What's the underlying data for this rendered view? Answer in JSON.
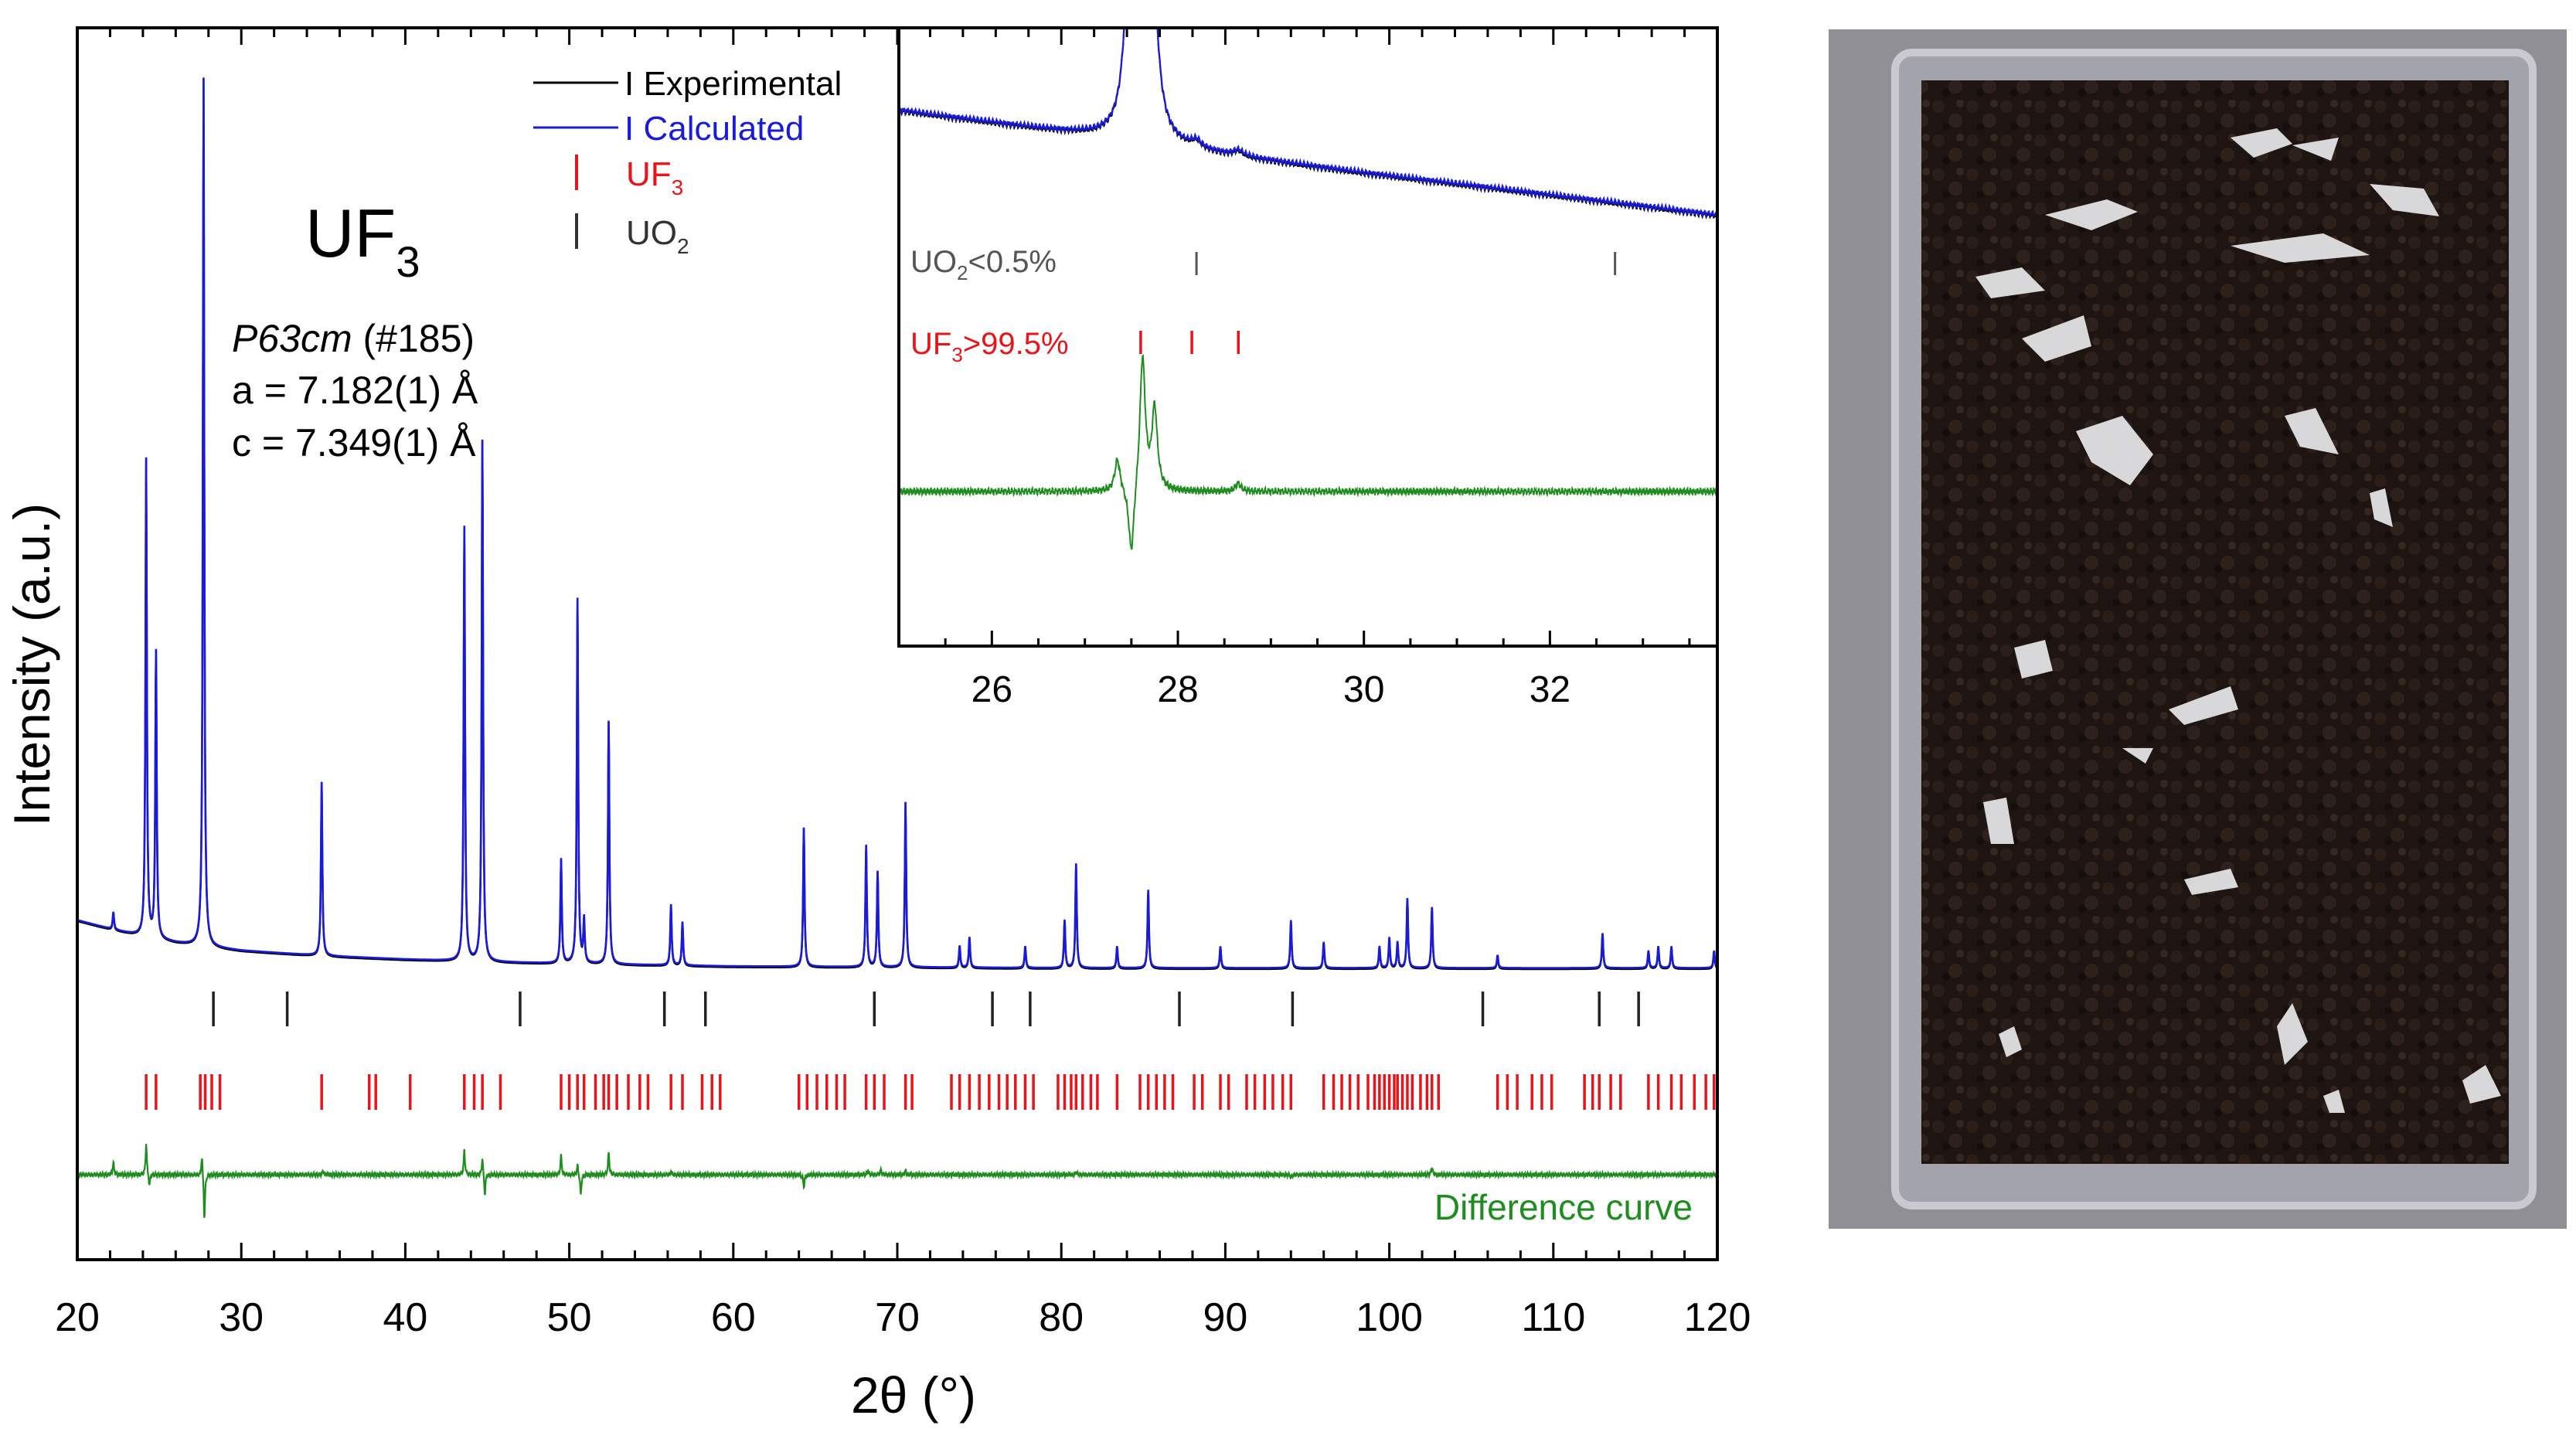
{
  "chart_data": {
    "type": "line",
    "title": "",
    "xlabel": "2θ (°)",
    "ylabel": "Intensity (a.u.)",
    "xlim": [
      20,
      120
    ],
    "xticks": [
      20,
      30,
      40,
      50,
      60,
      70,
      80,
      90,
      100,
      110,
      120
    ],
    "grid": false,
    "legend_placement": "top-center",
    "annotations": {
      "compound": "UF",
      "compound_sub": "3",
      "space_group_symbol": "P63cm",
      "space_group_number": "(#185)",
      "lattice_a": "a = 7.182(1) Å",
      "lattice_c": "c = 7.349(1) Å",
      "difference_label": "Difference curve"
    },
    "legend": [
      {
        "label": "I Experimental",
        "color": "#000000",
        "kind": "line"
      },
      {
        "label": "I Calculated",
        "color": "#1a1adb",
        "kind": "line"
      },
      {
        "label": "UF",
        "sub": "3",
        "color": "#e8141c",
        "kind": "tick"
      },
      {
        "label": "UO",
        "sub": "2",
        "color": "#333333",
        "kind": "tick"
      }
    ],
    "colors": {
      "experimental": "#000000",
      "calculated": "#1a1adb",
      "uf3_ticks": "#e8141c",
      "uo2_ticks": "#222222",
      "difference": "#1e8c1e"
    },
    "baseline": {
      "points": [
        [
          20,
          0.055
        ],
        [
          22,
          0.045
        ],
        [
          24,
          0.036
        ],
        [
          26,
          0.029
        ],
        [
          28,
          0.024
        ],
        [
          30,
          0.02
        ],
        [
          35,
          0.014
        ],
        [
          40,
          0.01
        ],
        [
          45,
          0.007
        ],
        [
          50,
          0.005
        ],
        [
          60,
          0.002
        ],
        [
          70,
          0.001
        ],
        [
          80,
          0.0
        ],
        [
          120,
          0.0
        ]
      ]
    },
    "peaks": [
      {
        "x": 22.2,
        "y": 0.02
      },
      {
        "x": 24.2,
        "y": 0.55
      },
      {
        "x": 24.8,
        "y": 0.33
      },
      {
        "x": 27.7,
        "y": 1.0
      },
      {
        "x": 34.9,
        "y": 0.2
      },
      {
        "x": 43.6,
        "y": 0.5
      },
      {
        "x": 44.7,
        "y": 0.6
      },
      {
        "x": 49.5,
        "y": 0.12
      },
      {
        "x": 50.5,
        "y": 0.42
      },
      {
        "x": 50.9,
        "y": 0.05
      },
      {
        "x": 52.4,
        "y": 0.28
      },
      {
        "x": 56.2,
        "y": 0.07
      },
      {
        "x": 56.9,
        "y": 0.05
      },
      {
        "x": 64.3,
        "y": 0.16
      },
      {
        "x": 68.1,
        "y": 0.14
      },
      {
        "x": 68.8,
        "y": 0.11
      },
      {
        "x": 70.5,
        "y": 0.19
      },
      {
        "x": 73.8,
        "y": 0.025
      },
      {
        "x": 74.4,
        "y": 0.035
      },
      {
        "x": 77.8,
        "y": 0.025
      },
      {
        "x": 80.2,
        "y": 0.055
      },
      {
        "x": 80.9,
        "y": 0.12
      },
      {
        "x": 83.4,
        "y": 0.025
      },
      {
        "x": 85.3,
        "y": 0.09
      },
      {
        "x": 89.7,
        "y": 0.025
      },
      {
        "x": 94.0,
        "y": 0.055
      },
      {
        "x": 96.0,
        "y": 0.03
      },
      {
        "x": 99.4,
        "y": 0.025
      },
      {
        "x": 100.0,
        "y": 0.035
      },
      {
        "x": 100.5,
        "y": 0.03
      },
      {
        "x": 101.1,
        "y": 0.08
      },
      {
        "x": 102.6,
        "y": 0.07
      },
      {
        "x": 106.6,
        "y": 0.015
      },
      {
        "x": 113.0,
        "y": 0.04
      },
      {
        "x": 115.8,
        "y": 0.02
      },
      {
        "x": 116.4,
        "y": 0.025
      },
      {
        "x": 117.2,
        "y": 0.025
      },
      {
        "x": 119.8,
        "y": 0.02
      }
    ],
    "uo2_reflections": [
      28.3,
      32.8,
      47.0,
      55.8,
      58.3,
      68.6,
      75.8,
      78.1,
      87.2,
      94.1,
      105.7,
      112.8,
      115.2
    ],
    "uf3_reflections": [
      24.2,
      24.8,
      27.5,
      27.8,
      28.2,
      28.7,
      34.9,
      37.8,
      38.2,
      40.3,
      43.6,
      44.2,
      44.7,
      45.8,
      49.5,
      50.0,
      50.5,
      50.9,
      51.6,
      52.1,
      52.4,
      52.9,
      53.6,
      54.3,
      54.8,
      56.2,
      56.9,
      58.1,
      58.7,
      59.2,
      64.0,
      64.5,
      65.1,
      65.7,
      66.3,
      66.8,
      68.1,
      68.6,
      69.2,
      70.5,
      70.9,
      73.3,
      73.8,
      74.4,
      75.0,
      75.6,
      76.2,
      76.7,
      77.2,
      77.8,
      78.3,
      79.8,
      80.2,
      80.6,
      80.9,
      81.3,
      81.8,
      82.2,
      83.4,
      84.8,
      85.3,
      85.8,
      86.3,
      86.8,
      88.1,
      88.6,
      89.7,
      90.2,
      91.3,
      91.8,
      92.4,
      92.9,
      93.5,
      94.0,
      96.0,
      96.6,
      97.1,
      97.6,
      98.1,
      98.7,
      99.1,
      99.4,
      99.7,
      100.0,
      100.3,
      100.5,
      100.8,
      101.1,
      101.4,
      101.9,
      102.3,
      102.6,
      103.0,
      106.6,
      107.2,
      107.8,
      108.7,
      109.3,
      109.9,
      111.9,
      112.4,
      112.8,
      113.5,
      114.1,
      115.8,
      116.4,
      117.2,
      117.8,
      118.6,
      119.3,
      119.8
    ],
    "difference_features": [
      {
        "x": 22.2,
        "y": 0.35
      },
      {
        "x": 24.2,
        "y": 0.9
      },
      {
        "x": 24.4,
        "y": -0.35
      },
      {
        "x": 27.6,
        "y": 0.6
      },
      {
        "x": 27.75,
        "y": -1.3
      },
      {
        "x": 35.0,
        "y": 0.12
      },
      {
        "x": 43.6,
        "y": 0.7
      },
      {
        "x": 44.7,
        "y": 0.5
      },
      {
        "x": 44.85,
        "y": -0.6
      },
      {
        "x": 49.5,
        "y": 0.55
      },
      {
        "x": 50.5,
        "y": 0.3
      },
      {
        "x": 50.7,
        "y": -0.6
      },
      {
        "x": 52.4,
        "y": 0.65
      },
      {
        "x": 56.2,
        "y": 0.1
      },
      {
        "x": 64.3,
        "y": -0.35
      },
      {
        "x": 68.2,
        "y": 0.12
      },
      {
        "x": 69.0,
        "y": 0.15
      },
      {
        "x": 70.5,
        "y": 0.12
      },
      {
        "x": 80.9,
        "y": 0.08
      },
      {
        "x": 94.0,
        "y": -0.08
      },
      {
        "x": 102.6,
        "y": 0.22
      }
    ],
    "inset": {
      "type": "line",
      "xlim": [
        25,
        33.8
      ],
      "xticks": [
        26,
        28,
        30,
        32
      ],
      "baseline": [
        [
          25.0,
          0.8
        ],
        [
          27.0,
          0.62
        ],
        [
          28.5,
          0.47
        ],
        [
          30.0,
          0.34
        ],
        [
          31.5,
          0.22
        ],
        [
          33.8,
          0.03
        ]
      ],
      "peaks": [
        {
          "x": 27.5,
          "y": 2.0
        },
        {
          "x": 27.7,
          "y": 2.2
        },
        {
          "x": 28.2,
          "y": 0.05
        },
        {
          "x": 28.65,
          "y": 0.04
        }
      ],
      "uo2_label": "UO",
      "uo2_sub": "2",
      "uo2_percent": "<0.5%",
      "uo2_reflections": [
        28.2,
        32.7
      ],
      "uf3_label": "UF",
      "uf3_sub": "3",
      "uf3_percent": ">99.5%",
      "uf3_reflections": [
        27.6,
        28.15,
        28.65
      ],
      "difference_features": [
        {
          "x": 27.35,
          "y": 0.6
        },
        {
          "x": 27.5,
          "y": -1.3
        },
        {
          "x": 27.62,
          "y": 2.5
        },
        {
          "x": 27.75,
          "y": 1.5
        },
        {
          "x": 28.65,
          "y": 0.15
        }
      ]
    }
  },
  "photo": {
    "tray_color": "#9e9ea6",
    "content_color": "#1e1512"
  }
}
